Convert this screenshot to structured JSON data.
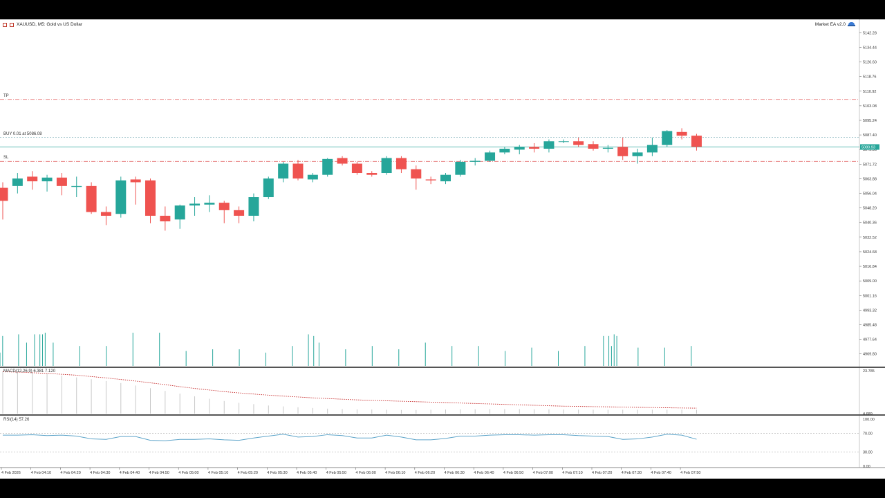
{
  "header": {
    "symbol_label": "XAUUSD, M5:  Gold vs US Dollar",
    "ea_label": "Market EA v2.0"
  },
  "levels": {
    "tp_label": "TP",
    "tp_price": 5106.5,
    "buy_label": "BUY 0.01 at 5086.08",
    "buy_price": 5086.08,
    "sl_label": "SL",
    "sl_price": 5073.2,
    "current_price": 5080.93,
    "current_price_label": "5080.93"
  },
  "colors": {
    "bull": "#26a69a",
    "bear": "#ef5350",
    "level_line": "#e57373",
    "buy_line": "#7fb0b8",
    "price_line": "#26a69a",
    "macd_signal": "#c62828",
    "rsi_line": "#5da4c9"
  },
  "chart_data": [
    {
      "type": "candlestick",
      "title": "XAUUSD, M5:  Gold vs US Dollar",
      "ylim": [
        4963.0,
        5146.5
      ],
      "y_ticks": [
        "5142.28",
        "5134.44",
        "5126.60",
        "5118.76",
        "5110.92",
        "5103.08",
        "5095.24",
        "5087.40",
        "5079.56",
        "5071.72",
        "5063.88",
        "5056.04",
        "5048.20",
        "5040.36",
        "5032.52",
        "5024.68",
        "5016.84",
        "5009.00",
        "5001.16",
        "4993.32",
        "4985.48",
        "4977.64",
        "4969.80"
      ],
      "x_labels": [
        "4 Feb 2026",
        "4 Feb 04:10",
        "4 Feb 04:20",
        "4 Feb 04:30",
        "4 Feb 04:40",
        "4 Feb 04:50",
        "4 Feb 05:00",
        "4 Feb 05:10",
        "4 Feb 05:20",
        "4 Feb 05:30",
        "4 Feb 05:40",
        "4 Feb 05:50",
        "4 Feb 06:00",
        "4 Feb 06:10",
        "4 Feb 06:20",
        "4 Feb 06:30",
        "4 Feb 06:40",
        "4 Feb 06:50",
        "4 Feb 07:00",
        "4 Feb 07:10",
        "4 Feb 07:20",
        "4 Feb 07:30",
        "4 Feb 07:40",
        "4 Feb 07:50"
      ],
      "candles": [
        {
          "o": 5059.0,
          "h": 5062.0,
          "l": 5042.0,
          "c": 5052.0
        },
        {
          "o": 5060.0,
          "h": 5067.0,
          "l": 5056.0,
          "c": 5064.0
        },
        {
          "o": 5065.0,
          "h": 5068.0,
          "l": 5058.0,
          "c": 5062.5
        },
        {
          "o": 5062.5,
          "h": 5066.0,
          "l": 5057.0,
          "c": 5064.5
        },
        {
          "o": 5064.5,
          "h": 5067.0,
          "l": 5055.0,
          "c": 5060.0
        },
        {
          "o": 5059.5,
          "h": 5065.0,
          "l": 5054.0,
          "c": 5060.0
        },
        {
          "o": 5060.0,
          "h": 5062.0,
          "l": 5045.0,
          "c": 5046.0
        },
        {
          "o": 5046.0,
          "h": 5049.0,
          "l": 5039.0,
          "c": 5044.0
        },
        {
          "o": 5045.0,
          "h": 5065.0,
          "l": 5043.0,
          "c": 5063.0
        },
        {
          "o": 5063.5,
          "h": 5065.0,
          "l": 5050.0,
          "c": 5062.0
        },
        {
          "o": 5063.0,
          "h": 5064.0,
          "l": 5040.0,
          "c": 5044.0
        },
        {
          "o": 5044.0,
          "h": 5049.0,
          "l": 5036.0,
          "c": 5041.0
        },
        {
          "o": 5042.0,
          "h": 5050.0,
          "l": 5037.0,
          "c": 5049.5
        },
        {
          "o": 5049.5,
          "h": 5054.0,
          "l": 5044.0,
          "c": 5050.5
        },
        {
          "o": 5050.0,
          "h": 5055.0,
          "l": 5046.0,
          "c": 5051.0
        },
        {
          "o": 5051.0,
          "h": 5052.0,
          "l": 5040.0,
          "c": 5047.0
        },
        {
          "o": 5047.0,
          "h": 5049.0,
          "l": 5040.0,
          "c": 5044.0
        },
        {
          "o": 5044.0,
          "h": 5056.0,
          "l": 5041.0,
          "c": 5054.0
        },
        {
          "o": 5054.0,
          "h": 5065.0,
          "l": 5053.0,
          "c": 5064.0
        },
        {
          "o": 5064.0,
          "h": 5073.0,
          "l": 5062.0,
          "c": 5072.0
        },
        {
          "o": 5072.0,
          "h": 5074.0,
          "l": 5063.0,
          "c": 5064.0
        },
        {
          "o": 5063.5,
          "h": 5067.0,
          "l": 5062.0,
          "c": 5066.0
        },
        {
          "o": 5066.0,
          "h": 5075.0,
          "l": 5065.0,
          "c": 5074.5
        },
        {
          "o": 5075.0,
          "h": 5076.0,
          "l": 5071.0,
          "c": 5072.0
        },
        {
          "o": 5072.0,
          "h": 5073.0,
          "l": 5066.0,
          "c": 5067.0
        },
        {
          "o": 5067.0,
          "h": 5068.0,
          "l": 5065.0,
          "c": 5066.0
        },
        {
          "o": 5067.0,
          "h": 5076.0,
          "l": 5066.0,
          "c": 5075.0
        },
        {
          "o": 5075.0,
          "h": 5076.0,
          "l": 5067.0,
          "c": 5069.0
        },
        {
          "o": 5069.0,
          "h": 5071.0,
          "l": 5058.0,
          "c": 5064.0
        },
        {
          "o": 5063.5,
          "h": 5065.0,
          "l": 5061.0,
          "c": 5063.0
        },
        {
          "o": 5062.5,
          "h": 5067.0,
          "l": 5061.0,
          "c": 5066.0
        },
        {
          "o": 5066.0,
          "h": 5074.0,
          "l": 5065.0,
          "c": 5073.0
        },
        {
          "o": 5073.0,
          "h": 5075.0,
          "l": 5071.0,
          "c": 5073.5
        },
        {
          "o": 5073.5,
          "h": 5079.0,
          "l": 5073.0,
          "c": 5078.0
        },
        {
          "o": 5078.0,
          "h": 5081.0,
          "l": 5077.0,
          "c": 5080.0
        },
        {
          "o": 5079.5,
          "h": 5082.0,
          "l": 5077.0,
          "c": 5081.0
        },
        {
          "o": 5081.0,
          "h": 5083.0,
          "l": 5078.0,
          "c": 5080.0
        },
        {
          "o": 5080.0,
          "h": 5085.0,
          "l": 5078.0,
          "c": 5084.0
        },
        {
          "o": 5084.0,
          "h": 5085.0,
          "l": 5083.0,
          "c": 5084.0
        },
        {
          "o": 5084.0,
          "h": 5086.0,
          "l": 5081.0,
          "c": 5082.0
        },
        {
          "o": 5082.5,
          "h": 5084.0,
          "l": 5079.0,
          "c": 5080.0
        },
        {
          "o": 5080.0,
          "h": 5082.0,
          "l": 5078.0,
          "c": 5080.5
        },
        {
          "o": 5081.0,
          "h": 5086.0,
          "l": 5074.0,
          "c": 5076.0
        },
        {
          "o": 5076.0,
          "h": 5080.0,
          "l": 5072.0,
          "c": 5078.0
        },
        {
          "o": 5078.0,
          "h": 5086.0,
          "l": 5076.0,
          "c": 5082.0
        },
        {
          "o": 5082.0,
          "h": 5090.0,
          "l": 5081.0,
          "c": 5089.5
        },
        {
          "o": 5089.0,
          "h": 5091.0,
          "l": 5085.0,
          "c": 5087.0
        },
        {
          "o": 5087.0,
          "h": 5088.0,
          "l": 5079.0,
          "c": 5081.0
        }
      ]
    },
    {
      "type": "bar",
      "title": "",
      "values": [
        8,
        18,
        12,
        14,
        11,
        11,
        12,
        19,
        15,
        16,
        14,
        15,
        16,
        19,
        15,
        19,
        19,
        20,
        14,
        15,
        14,
        14,
        13,
        14,
        14,
        15,
        16,
        15,
        14,
        15,
        12,
        13,
        13,
        13,
        13,
        14,
        13,
        13,
        13,
        12,
        12,
        10,
        10,
        10,
        10,
        9,
        9,
        10,
        11,
        12,
        20,
        14,
        15,
        14,
        13,
        12,
        11,
        14,
        12,
        12,
        20,
        11,
        9,
        10,
        11,
        8,
        9,
        10,
        11,
        8,
        9,
        10,
        12,
        11,
        14,
        10,
        8,
        9,
        10,
        12,
        10,
        15,
        11,
        9,
        10,
        11,
        12,
        11,
        12,
        9,
        10,
        9,
        8,
        9,
        10,
        11,
        12,
        13,
        11,
        9,
        8,
        9,
        7,
        8,
        9,
        8,
        11,
        10,
        9,
        11,
        12,
        10,
        14,
        11,
        13,
        13,
        19,
        10,
        18,
        10,
        14,
        11,
        12,
        10,
        12,
        10,
        12,
        11,
        12,
        11,
        10,
        9,
        8,
        10,
        12,
        13,
        9,
        10,
        12,
        8,
        12,
        10,
        13,
        8,
        11,
        9,
        12,
        11,
        10,
        9,
        10,
        11,
        12,
        13,
        14,
        11,
        12,
        13,
        12,
        13,
        14,
        12,
        16,
        14,
        13,
        12,
        11,
        13,
        15,
        14,
        12,
        10,
        11,
        12,
        13,
        11,
        12,
        10,
        11,
        16,
        12,
        12,
        14,
        13,
        12,
        12,
        13,
        15,
        10,
        8,
        9,
        10,
        11,
        9,
        11,
        12,
        10,
        11,
        12,
        9,
        11,
        12,
        9,
        10,
        11,
        9,
        10,
        11,
        12,
        13,
        9,
        10,
        11,
        12,
        11,
        13,
        14,
        12,
        11,
        13,
        12,
        14,
        12,
        13,
        14,
        10,
        12,
        18,
        14,
        18,
        12,
        19,
        18,
        17,
        10,
        11,
        12,
        12,
        15,
        10,
        11,
        12,
        13,
        11,
        12,
        11,
        12,
        11,
        15,
        10,
        11,
        12,
        13,
        12,
        16,
        11,
        12,
        13,
        12,
        13,
        12,
        11,
        12
      ]
    },
    {
      "type": "bar",
      "title": "MACD(12,26,9) 6.381 7.120",
      "ylim": [
        4.689,
        23.785
      ],
      "y_ticks": [
        "23.785",
        "4.689"
      ],
      "histogram": [
        23.5,
        23.4,
        23.0,
        22.4,
        21.6,
        20.8,
        20.0,
        19.2,
        18.3,
        17.2,
        16.0,
        14.8,
        13.6,
        12.4,
        11.3,
        10.3,
        9.5,
        8.9,
        8.3,
        7.9,
        7.5,
        7.2,
        6.9,
        6.7,
        6.6,
        6.5,
        6.4,
        6.3,
        6.3,
        6.4,
        6.5,
        6.6,
        6.6,
        6.7,
        6.7,
        6.7,
        6.6,
        6.6,
        6.5,
        6.5,
        6.4,
        6.4,
        6.4,
        6.4,
        6.4,
        6.4,
        6.4,
        6.4
      ],
      "signal": [
        23.3,
        23.2,
        22.9,
        22.6,
        22.2,
        21.8,
        21.2,
        20.6,
        19.9,
        19.2,
        18.4,
        17.6,
        16.7,
        15.9,
        15.2,
        14.5,
        13.9,
        13.4,
        12.9,
        12.5,
        12.1,
        11.7,
        11.4,
        11.1,
        10.8,
        10.6,
        10.4,
        10.2,
        10.0,
        9.8,
        9.6,
        9.4,
        9.2,
        9.0,
        8.8,
        8.6,
        8.4,
        8.2,
        8.0,
        7.9,
        7.8,
        7.7,
        7.6,
        7.5,
        7.4,
        7.3,
        7.2,
        7.12
      ]
    },
    {
      "type": "line",
      "title": "RSI(14) 57.26",
      "ylim": [
        0,
        100
      ],
      "y_ticks": [
        "100.00",
        "70.00",
        "30.00",
        "0.00"
      ],
      "levels": [
        70,
        30
      ],
      "values": [
        66,
        66,
        67,
        65,
        66,
        64,
        58,
        57,
        63,
        63,
        55,
        54,
        57,
        57,
        58,
        56,
        55,
        60,
        64,
        68,
        62,
        63,
        67,
        65,
        60,
        60,
        66,
        62,
        56,
        56,
        59,
        64,
        64,
        66,
        67,
        67,
        66,
        67,
        67,
        65,
        64,
        63,
        57,
        58,
        62,
        68,
        66,
        57.26
      ]
    }
  ]
}
